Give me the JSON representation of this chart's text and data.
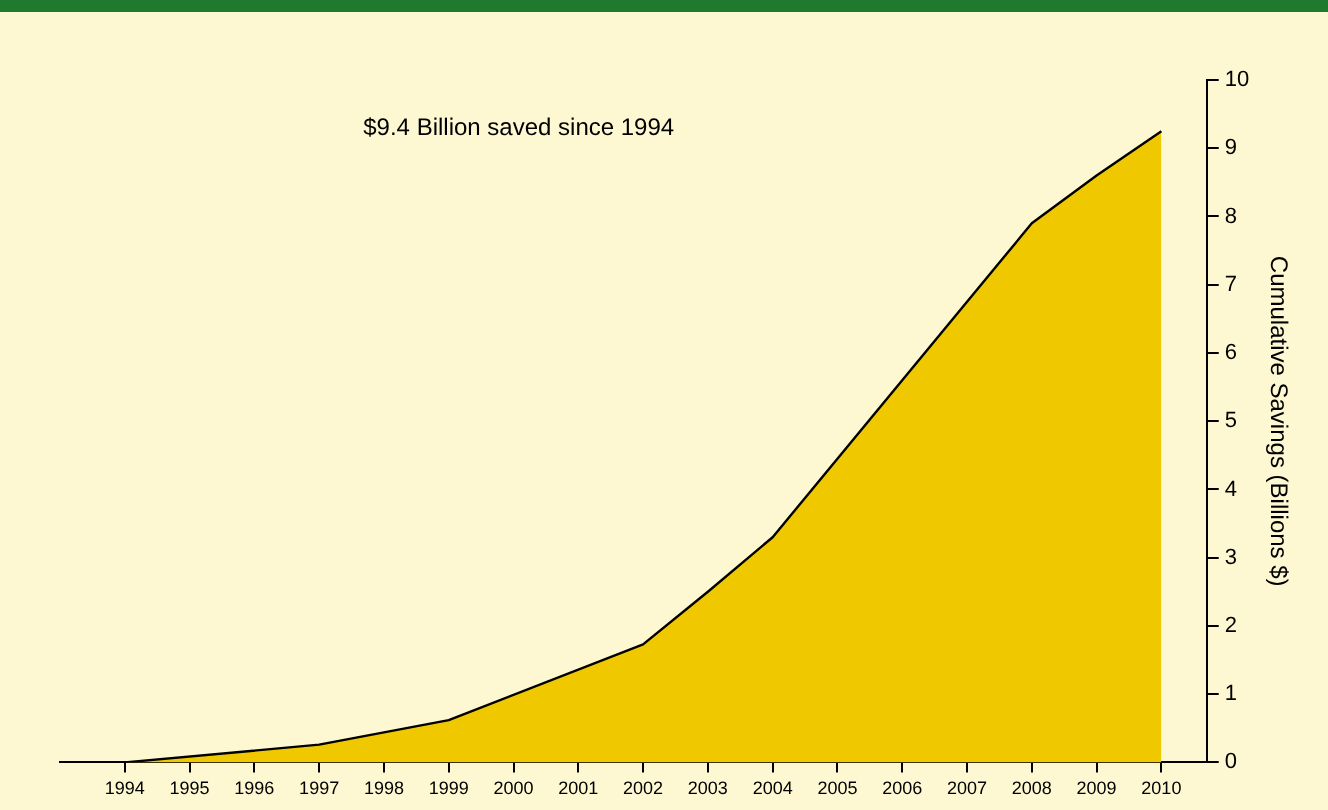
{
  "chart_data": {
    "type": "area",
    "annotations": [
      "$9.4 Billion saved since 1994"
    ],
    "y2label": "Cumulative Savings (Billions $)",
    "x": [
      1994,
      1997,
      1999,
      2002,
      2003,
      2004,
      2008,
      2009,
      2010
    ],
    "series": [
      {
        "color": "#f0c800",
        "axis": "y2",
        "values": [
          0,
          0.26,
          0.62,
          1.73,
          2.5,
          3.3,
          7.9,
          8.6,
          9.25
        ]
      }
    ],
    "xlim": [
      1993,
      2010.7
    ],
    "xticks": [
      1994,
      1995,
      1996,
      1997,
      1998,
      1999,
      2000,
      2001,
      2002,
      2003,
      2004,
      2005,
      2006,
      2007,
      2008,
      2009,
      2010
    ],
    "y2lim": [
      0,
      10
    ],
    "y2ticks": [
      0,
      1,
      2,
      3,
      4,
      5,
      6,
      7,
      8,
      9,
      10
    ],
    "grid": false,
    "legend": false,
    "marker": "none",
    "line_style": "solid"
  }
}
